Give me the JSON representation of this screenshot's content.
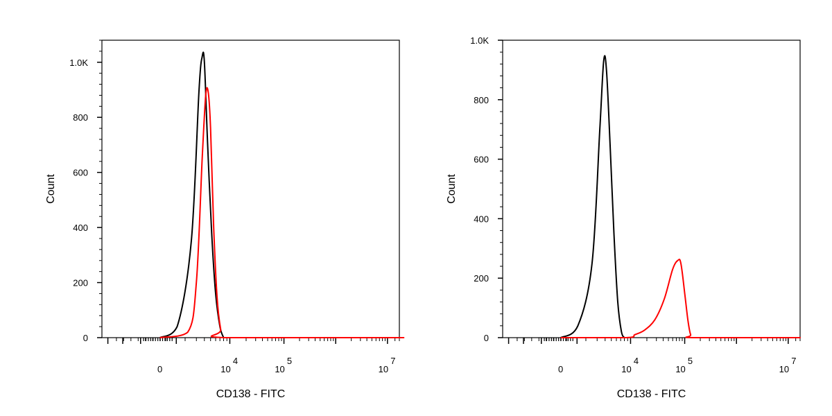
{
  "chart_data": [
    {
      "type": "line",
      "xlabel": "CD138 - FITC",
      "ylabel": "Count",
      "x_scale": "logicle",
      "x_tick_labels": [
        {
          "base": "0",
          "exp": ""
        },
        {
          "base": "10",
          "exp": "4"
        },
        {
          "base": "10",
          "exp": "5"
        },
        {
          "base": "10",
          "exp": "7"
        }
      ],
      "y_tick_labels": [
        "0",
        "200",
        "400",
        "600",
        "800",
        "1.0K"
      ],
      "y_ticks": [
        0,
        200,
        400,
        600,
        800,
        1000
      ],
      "ylim": [
        0,
        1080
      ],
      "series": [
        {
          "color": "#000000",
          "points": [
            [
              0,
              0
            ],
            [
              1500,
              40
            ],
            [
              2500,
              350
            ],
            [
              3300,
              900
            ],
            [
              3700,
              1020
            ],
            [
              4000,
              1000
            ],
            [
              4500,
              700
            ],
            [
              5200,
              380
            ],
            [
              6000,
              160
            ],
            [
              7000,
              40
            ],
            [
              8000,
              0
            ]
          ]
        },
        {
          "color": "#ff0000",
          "points": [
            [
              0,
              0
            ],
            [
              2200,
              20
            ],
            [
              3000,
              200
            ],
            [
              3700,
              650
            ],
            [
              4200,
              880
            ],
            [
              4600,
              890
            ],
            [
              5000,
              760
            ],
            [
              5600,
              400
            ],
            [
              6300,
              150
            ],
            [
              7200,
              30
            ],
            [
              8200,
              0
            ],
            [
              10000000,
              0
            ]
          ]
        }
      ]
    },
    {
      "type": "line",
      "xlabel": "CD138 - FITC",
      "ylabel": "Count",
      "x_scale": "logicle",
      "x_tick_labels": [
        {
          "base": "0",
          "exp": ""
        },
        {
          "base": "10",
          "exp": "4"
        },
        {
          "base": "10",
          "exp": "5"
        },
        {
          "base": "10",
          "exp": "7"
        }
      ],
      "y_tick_labels": [
        "0",
        "200",
        "400",
        "600",
        "800",
        "1.0K"
      ],
      "y_ticks": [
        0,
        200,
        400,
        600,
        800,
        1000
      ],
      "ylim": [
        0,
        1000
      ],
      "series": [
        {
          "color": "#000000",
          "points": [
            [
              0,
              0
            ],
            [
              1500,
              40
            ],
            [
              2500,
              250
            ],
            [
              3300,
              700
            ],
            [
              3800,
              930
            ],
            [
              4200,
              900
            ],
            [
              4800,
              640
            ],
            [
              5500,
              350
            ],
            [
              6300,
              120
            ],
            [
              7200,
              20
            ],
            [
              8000,
              0
            ]
          ]
        },
        {
          "color": "#ff0000",
          "points": [
            [
              0,
              0
            ],
            [
              8500,
              0
            ],
            [
              12000,
              10
            ],
            [
              18000,
              25
            ],
            [
              28000,
              60
            ],
            [
              42000,
              130
            ],
            [
              60000,
              230
            ],
            [
              75000,
              260
            ],
            [
              85000,
              250
            ],
            [
              100000,
              150
            ],
            [
              115000,
              60
            ],
            [
              130000,
              10
            ],
            [
              150000,
              0
            ],
            [
              10000000,
              0
            ]
          ]
        }
      ]
    }
  ]
}
